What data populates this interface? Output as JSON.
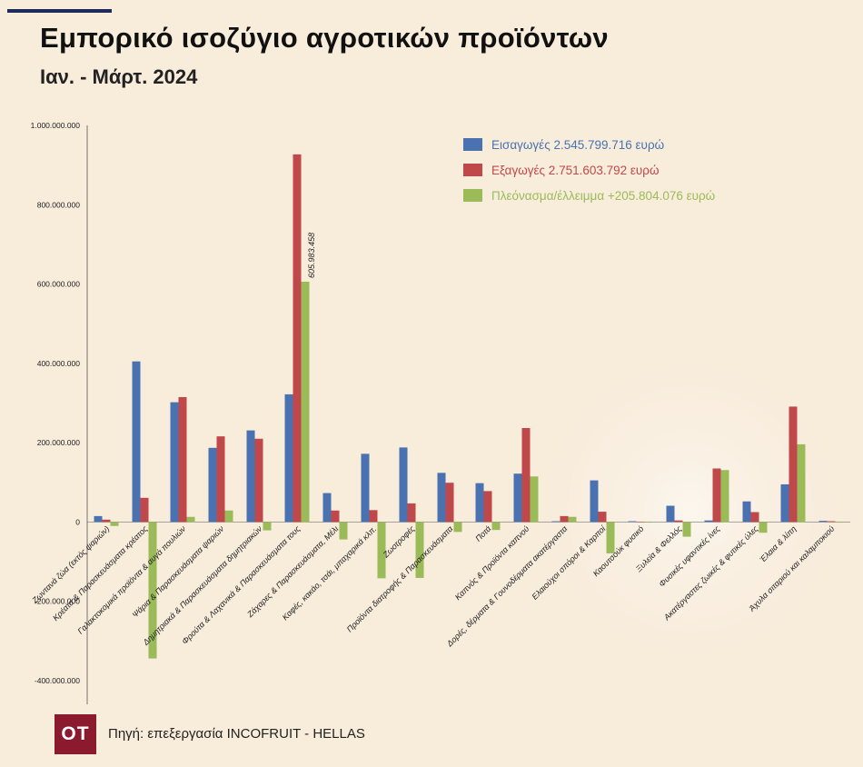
{
  "header": {
    "title": "Εμπορικό ισοζύγιο αγροτικών προϊόντων",
    "subtitle": "Ιαν. - Μάρτ. 2024"
  },
  "footer": {
    "logo_text": "OT",
    "source": "Πηγή: επεξεργασία INCOFRUIT - HELLAS"
  },
  "colors": {
    "background": "#f8ecdb",
    "imports": "#4a72b0",
    "exports": "#c0484a",
    "balance": "#9bbb59",
    "logo": "#8b1a2e",
    "accent_bar": "#1f2a5c"
  },
  "chart_data": {
    "type": "bar",
    "ylim": [
      -400000000,
      1000000000
    ],
    "yticks": [
      1000000000,
      800000000,
      600000000,
      400000000,
      200000000,
      0,
      -200000000,
      -400000000
    ],
    "ytick_labels": [
      "1.000.000.000",
      "800.000.000",
      "600.000.000",
      "400.000.000",
      "200.000.000",
      "0",
      "-200.000.000",
      "-400.000.000"
    ],
    "grid": false,
    "legend_position": "top-right",
    "categories": [
      "Ζωντανά ζώα (εκτός ψαριών)",
      "Κρέατα & Παρασκευάσματα κρέατος",
      "Γαλακτοκομικά προϊόντα & αυγά πουλιών",
      "Ψάρια & Παρασκευάσματα ψαριών",
      "Δημητριακά & Παρασκευάσματα δημητριακών",
      "Φρούτα & Λαχανικά & Παρασκευάσματα τους",
      "Ζάχαρες & Παρασκευάσματα, Μέλι",
      "Καφές, κακάο, τσάι, μπαχαρικά κλπ.",
      "Ζωοτροφές",
      "Προϊόντα διατροφής & Παρασκευάσματα",
      "Ποτά",
      "Καπνός & Προϊόντα καπνού",
      "Δορές, δέρματα & Γουνοδέρματα ακατέργαστα",
      "Ελαιούχοι σπόροι & Καρποί",
      "Καουτσούκ φυσικό",
      "Ξυλεία & Φελλός",
      "Φυσικές υφαντικές ίνες",
      "Ακατέργαστες ζωικές & φυτικές ύλες",
      "Έλαια & λίπη",
      "Άχυλα σιταριού και καλαμποκιού"
    ],
    "series": [
      {
        "name": "Εισαγωγές 2.545.799.716 ευρώ",
        "color": "#4a72b0",
        "values": [
          15000000,
          405000000,
          302000000,
          187000000,
          231000000,
          322000000,
          73000000,
          172000000,
          188000000,
          124000000,
          98000000,
          122000000,
          2000000,
          105000000,
          2000000,
          41000000,
          4000000,
          52000000,
          95000000,
          3000000
        ]
      },
      {
        "name": "Εξαγωγές 2.751.603.792 ευρώ",
        "color": "#c0484a",
        "values": [
          6000000,
          61000000,
          315000000,
          216000000,
          210000000,
          927000000,
          29000000,
          30000000,
          47000000,
          99000000,
          78000000,
          237000000,
          15000000,
          26000000,
          1000000,
          4000000,
          135000000,
          25000000,
          291000000,
          2000000
        ]
      },
      {
        "name": "Πλεόνασμα/έλλειμμα +205.804.076 ευρώ",
        "color": "#9bbb59",
        "values": [
          -10000000,
          -344000000,
          13000000,
          29000000,
          -21000000,
          605983458,
          -44000000,
          -142000000,
          -141000000,
          -25000000,
          -20000000,
          115000000,
          13000000,
          -79000000,
          -1000000,
          -37000000,
          131000000,
          -27000000,
          196000000,
          -1000000
        ]
      }
    ],
    "annotations": [
      {
        "text": "605.983.458",
        "category": "Φρούτα & Λαχανικά & Παρασκευάσματα τους",
        "series": "Πλεόνασμα/έλλειμμα +205.804.076 ευρώ"
      }
    ]
  }
}
